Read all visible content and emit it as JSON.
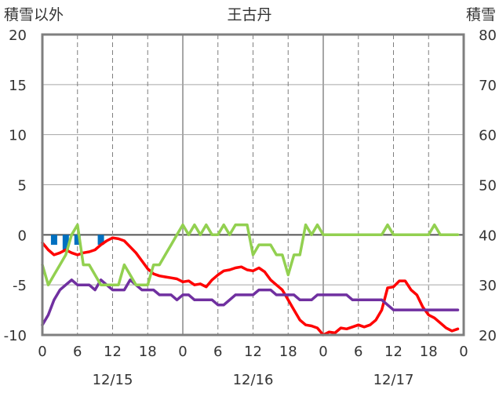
{
  "header": {
    "left_title": "積雪以外",
    "station": "王古丹",
    "right_title": "積雪"
  },
  "chart_data": {
    "type": "line",
    "title": "王古丹",
    "left_axis": {
      "label": "積雪以外",
      "ticks": [
        "20",
        "15",
        "10",
        "5",
        "0",
        "-5",
        "-10"
      ],
      "range": [
        -10,
        20
      ]
    },
    "right_axis": {
      "label": "積雪",
      "ticks": [
        "80",
        "70",
        "60",
        "50",
        "40",
        "30",
        "20"
      ],
      "range": [
        20,
        80
      ]
    },
    "x_ticks": [
      "0",
      "6",
      "12",
      "18",
      "0",
      "6",
      "12",
      "18",
      "0",
      "6",
      "12",
      "18",
      "0"
    ],
    "date_labels": [
      "12/15",
      "12/16",
      "12/17"
    ],
    "hours_range": [
      0,
      72
    ],
    "grid": true,
    "colors": {
      "temperature": "#ff0000",
      "dew_point": "#7030a0",
      "snow_depth": "#92d050",
      "precipitation": "#0070c0"
    },
    "series": [
      {
        "key": "temperature",
        "axis": "left",
        "x": [
          0,
          1,
          2,
          3,
          4,
          5,
          6,
          7,
          8,
          9,
          10,
          11,
          12,
          13,
          14,
          15,
          16,
          17,
          18,
          19,
          20,
          21,
          22,
          23,
          24,
          25,
          26,
          27,
          28,
          29,
          30,
          31,
          32,
          33,
          34,
          35,
          36,
          37,
          38,
          39,
          40,
          41,
          42,
          43,
          44,
          45,
          46,
          47,
          48,
          49,
          50,
          51,
          52,
          53,
          54,
          55,
          56,
          57,
          58,
          59,
          60,
          61,
          62,
          63,
          64,
          65,
          66,
          67,
          68,
          69,
          70,
          71
        ],
        "values": [
          -0.8,
          -1.5,
          -2.0,
          -1.8,
          -1.5,
          -1.8,
          -2.0,
          -1.8,
          -1.7,
          -1.5,
          -1.0,
          -0.6,
          -0.3,
          -0.4,
          -0.6,
          -1.2,
          -1.8,
          -2.6,
          -3.4,
          -3.9,
          -4.1,
          -4.2,
          -4.3,
          -4.4,
          -4.7,
          -4.6,
          -5.0,
          -4.9,
          -5.2,
          -4.5,
          -4.0,
          -3.6,
          -3.5,
          -3.3,
          -3.2,
          -3.5,
          -3.6,
          -3.3,
          -3.7,
          -4.5,
          -5.0,
          -5.5,
          -6.5,
          -7.5,
          -8.5,
          -9.0,
          -9.1,
          -9.3,
          -10.0,
          -9.7,
          -9.8,
          -9.3,
          -9.4,
          -9.2,
          -9.0,
          -9.2,
          -9.0,
          -8.5,
          -7.5,
          -5.3,
          -5.2,
          -4.6,
          -4.6,
          -5.5,
          -6.0,
          -7.2,
          -8.0,
          -8.3,
          -8.8,
          -9.3,
          -9.6,
          -9.4
        ]
      },
      {
        "key": "dew_point",
        "axis": "left",
        "x": [
          0,
          1,
          2,
          3,
          4,
          5,
          6,
          7,
          8,
          9,
          10,
          11,
          12,
          13,
          14,
          15,
          16,
          17,
          18,
          19,
          20,
          21,
          22,
          23,
          24,
          25,
          26,
          27,
          28,
          29,
          30,
          31,
          32,
          33,
          34,
          35,
          36,
          37,
          38,
          39,
          40,
          41,
          42,
          43,
          44,
          45,
          46,
          47,
          48,
          49,
          50,
          51,
          52,
          53,
          54,
          55,
          56,
          57,
          58,
          59,
          60,
          61,
          62,
          63,
          64,
          65,
          66,
          67,
          68,
          69,
          70,
          71
        ],
        "values": [
          -9.0,
          -8.0,
          -6.5,
          -5.5,
          -5.0,
          -4.5,
          -5.0,
          -5.0,
          -5.0,
          -5.5,
          -4.5,
          -5.0,
          -5.5,
          -5.5,
          -5.5,
          -4.5,
          -5.0,
          -5.5,
          -5.5,
          -5.5,
          -6.0,
          -6.0,
          -6.0,
          -6.5,
          -6.0,
          -6.0,
          -6.5,
          -6.5,
          -6.5,
          -6.5,
          -7.0,
          -7.0,
          -6.5,
          -6.0,
          -6.0,
          -6.0,
          -6.0,
          -5.5,
          -5.5,
          -5.5,
          -6.0,
          -6.0,
          -6.0,
          -6.0,
          -6.5,
          -6.5,
          -6.5,
          -6.0,
          -6.0,
          -6.0,
          -6.0,
          -6.0,
          -6.0,
          -6.5,
          -6.5,
          -6.5,
          -6.5,
          -6.5,
          -6.5,
          -7.0,
          -7.5,
          -7.5,
          -7.5,
          -7.5,
          -7.5,
          -7.5,
          -7.5,
          -7.5,
          -7.5,
          -7.5,
          -7.5,
          -7.5
        ]
      },
      {
        "key": "snow_depth",
        "axis": "right",
        "x": [
          0,
          1,
          2,
          3,
          4,
          5,
          6,
          7,
          8,
          9,
          10,
          11,
          12,
          13,
          14,
          15,
          16,
          17,
          18,
          19,
          20,
          21,
          22,
          23,
          24,
          25,
          26,
          27,
          28,
          29,
          30,
          31,
          32,
          33,
          34,
          35,
          36,
          37,
          38,
          39,
          40,
          41,
          42,
          43,
          44,
          45,
          46,
          47,
          48,
          49,
          50,
          51,
          52,
          53,
          54,
          55,
          56,
          57,
          58,
          59,
          60,
          61,
          62,
          63,
          64,
          65,
          66,
          67,
          68,
          69,
          70,
          71
        ],
        "values": [
          34,
          30,
          32,
          34,
          36,
          40,
          42,
          34,
          34,
          32,
          30,
          30,
          30,
          30,
          34,
          32,
          30,
          30,
          30,
          34,
          34,
          36,
          38,
          40,
          42,
          40,
          42,
          40,
          42,
          40,
          40,
          42,
          40,
          42,
          42,
          42,
          36,
          38,
          38,
          38,
          36,
          36,
          32,
          36,
          36,
          42,
          40,
          42,
          40,
          40,
          40,
          40,
          40,
          40,
          40,
          40,
          40,
          40,
          40,
          42,
          40,
          40,
          40,
          40,
          40,
          40,
          40,
          42,
          40,
          40,
          40,
          40
        ]
      },
      {
        "key": "precipitation",
        "type": "bar",
        "axis": "left",
        "x": [
          2,
          4,
          6,
          10
        ],
        "values": [
          -1.0,
          -1.5,
          -1.0,
          -1.0
        ]
      }
    ]
  }
}
